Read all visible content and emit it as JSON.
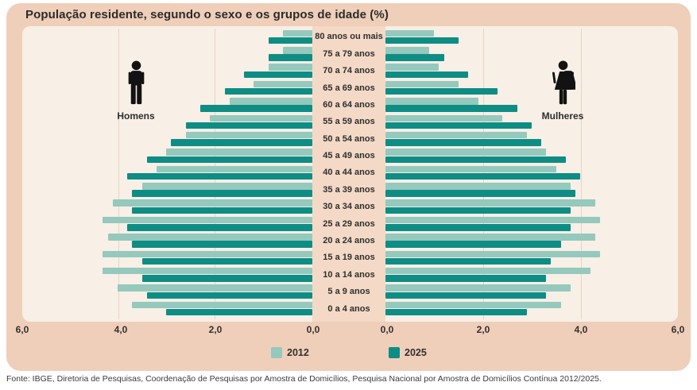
{
  "header": {
    "title": "População residente, segundo o sexo e os grupos de idade (%)"
  },
  "side_labels": {
    "men": "Homens",
    "women": "Mulheres"
  },
  "footer": {
    "source": "Fonte: IBGE, Diretoria de Pesquisas, Coordenação de Pesquisas por Amostra de Domicílios, Pesquisa Nacional por Amostra de Domicílios Contínua 2012/2025."
  },
  "colors": {
    "card": "#efcfba",
    "panel": "#f8efe6",
    "center_column": "#f3d9c6",
    "series_2012": "#95c9bd",
    "series_2025": "#0e8d85",
    "icon": "#121212"
  },
  "chart_data": {
    "type": "bar",
    "subtype": "population-pyramid",
    "title": "População residente, segundo o sexo e os grupos de idade (%)",
    "unit": "%",
    "left_side": "Homens",
    "right_side": "Mulheres",
    "age_groups": [
      "80 anos ou mais",
      "75 a 79 anos",
      "70 a 74 anos",
      "65 a 69 anos",
      "60 a 64 anos",
      "55 a 59 anos",
      "50 a 54 anos",
      "45 a 49 anos",
      "40 a 44 anos",
      "35 a 39 anos",
      "30 a 34 anos",
      "25 a 29 anos",
      "20 a 24 anos",
      "15 a 19 anos",
      "10 a 14 anos",
      "5 a 9 anos",
      "0 a 4 anos"
    ],
    "series": [
      {
        "name": "2012",
        "color_key": "series_2012",
        "homens": [
          0.6,
          0.6,
          0.9,
          1.2,
          1.7,
          2.1,
          2.6,
          3.0,
          3.2,
          3.5,
          4.1,
          4.3,
          4.2,
          4.3,
          4.3,
          4.0,
          3.7
        ],
        "mulheres": [
          1.0,
          0.9,
          1.1,
          1.5,
          1.9,
          2.4,
          2.9,
          3.3,
          3.5,
          3.8,
          4.3,
          4.4,
          4.3,
          4.4,
          4.2,
          3.8,
          3.6
        ]
      },
      {
        "name": "2025",
        "color_key": "series_2025",
        "homens": [
          0.9,
          0.9,
          1.4,
          1.8,
          2.3,
          2.6,
          2.9,
          3.4,
          3.8,
          3.7,
          3.7,
          3.8,
          3.7,
          3.5,
          3.5,
          3.4,
          3.0
        ],
        "mulheres": [
          1.5,
          1.2,
          1.7,
          2.3,
          2.7,
          3.0,
          3.2,
          3.7,
          4.0,
          3.9,
          3.8,
          3.8,
          3.6,
          3.4,
          3.3,
          3.3,
          2.9
        ]
      }
    ],
    "x_axis": {
      "max": 6.0,
      "left_ticks": [
        "6,0",
        "4,0",
        "2,0",
        "0,0"
      ],
      "right_ticks": [
        "0,0",
        "2,0",
        "4,0",
        "6,0"
      ]
    },
    "legend": [
      "2012",
      "2025"
    ],
    "grid": "vertical, subtle"
  }
}
